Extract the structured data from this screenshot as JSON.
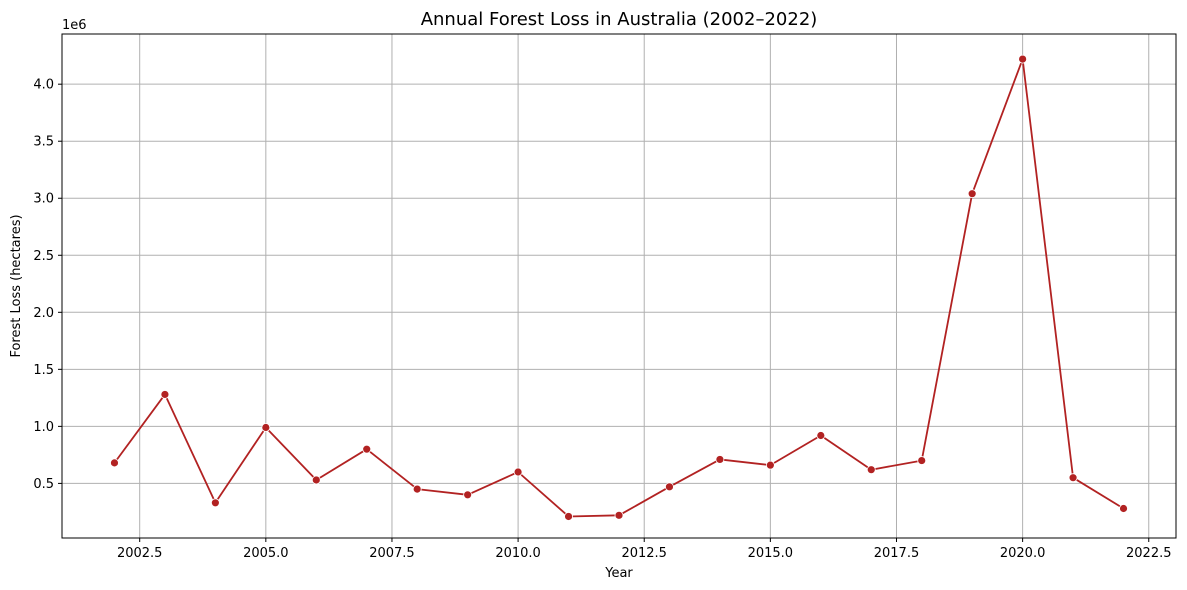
{
  "chart_data": {
    "type": "line",
    "title": "Annual Forest Loss in Australia (2002–2022)",
    "xlabel": "Year",
    "ylabel": "Forest Loss (hectares)",
    "y_offset_label": "1e6",
    "xlim": [
      2000.96,
      2023.04
    ],
    "ylim": [
      0.0213,
      4.44
    ],
    "x_ticks": [
      2002.5,
      2005.0,
      2007.5,
      2010.0,
      2012.5,
      2015.0,
      2017.5,
      2020.0,
      2022.5
    ],
    "x_tick_labels": [
      "2002.5",
      "2005.0",
      "2007.5",
      "2010.0",
      "2012.5",
      "2015.0",
      "2017.5",
      "2020.0",
      "2022.5"
    ],
    "y_ticks": [
      0.5,
      1.0,
      1.5,
      2.0,
      2.5,
      3.0,
      3.5,
      4.0
    ],
    "y_tick_labels": [
      "0.5",
      "1.0",
      "1.5",
      "2.0",
      "2.5",
      "3.0",
      "3.5",
      "4.0"
    ],
    "grid": true,
    "series": [
      {
        "color": "#b22222",
        "x": [
          2002,
          2003,
          2004,
          2005,
          2006,
          2007,
          2008,
          2009,
          2010,
          2011,
          2012,
          2013,
          2014,
          2015,
          2016,
          2017,
          2018,
          2019,
          2020,
          2021,
          2022
        ],
        "y": [
          0.68,
          1.28,
          0.33,
          0.99,
          0.53,
          0.8,
          0.45,
          0.4,
          0.6,
          0.21,
          0.22,
          0.47,
          0.71,
          0.66,
          0.92,
          0.62,
          0.7,
          3.04,
          4.22,
          0.55,
          0.28
        ]
      }
    ]
  }
}
